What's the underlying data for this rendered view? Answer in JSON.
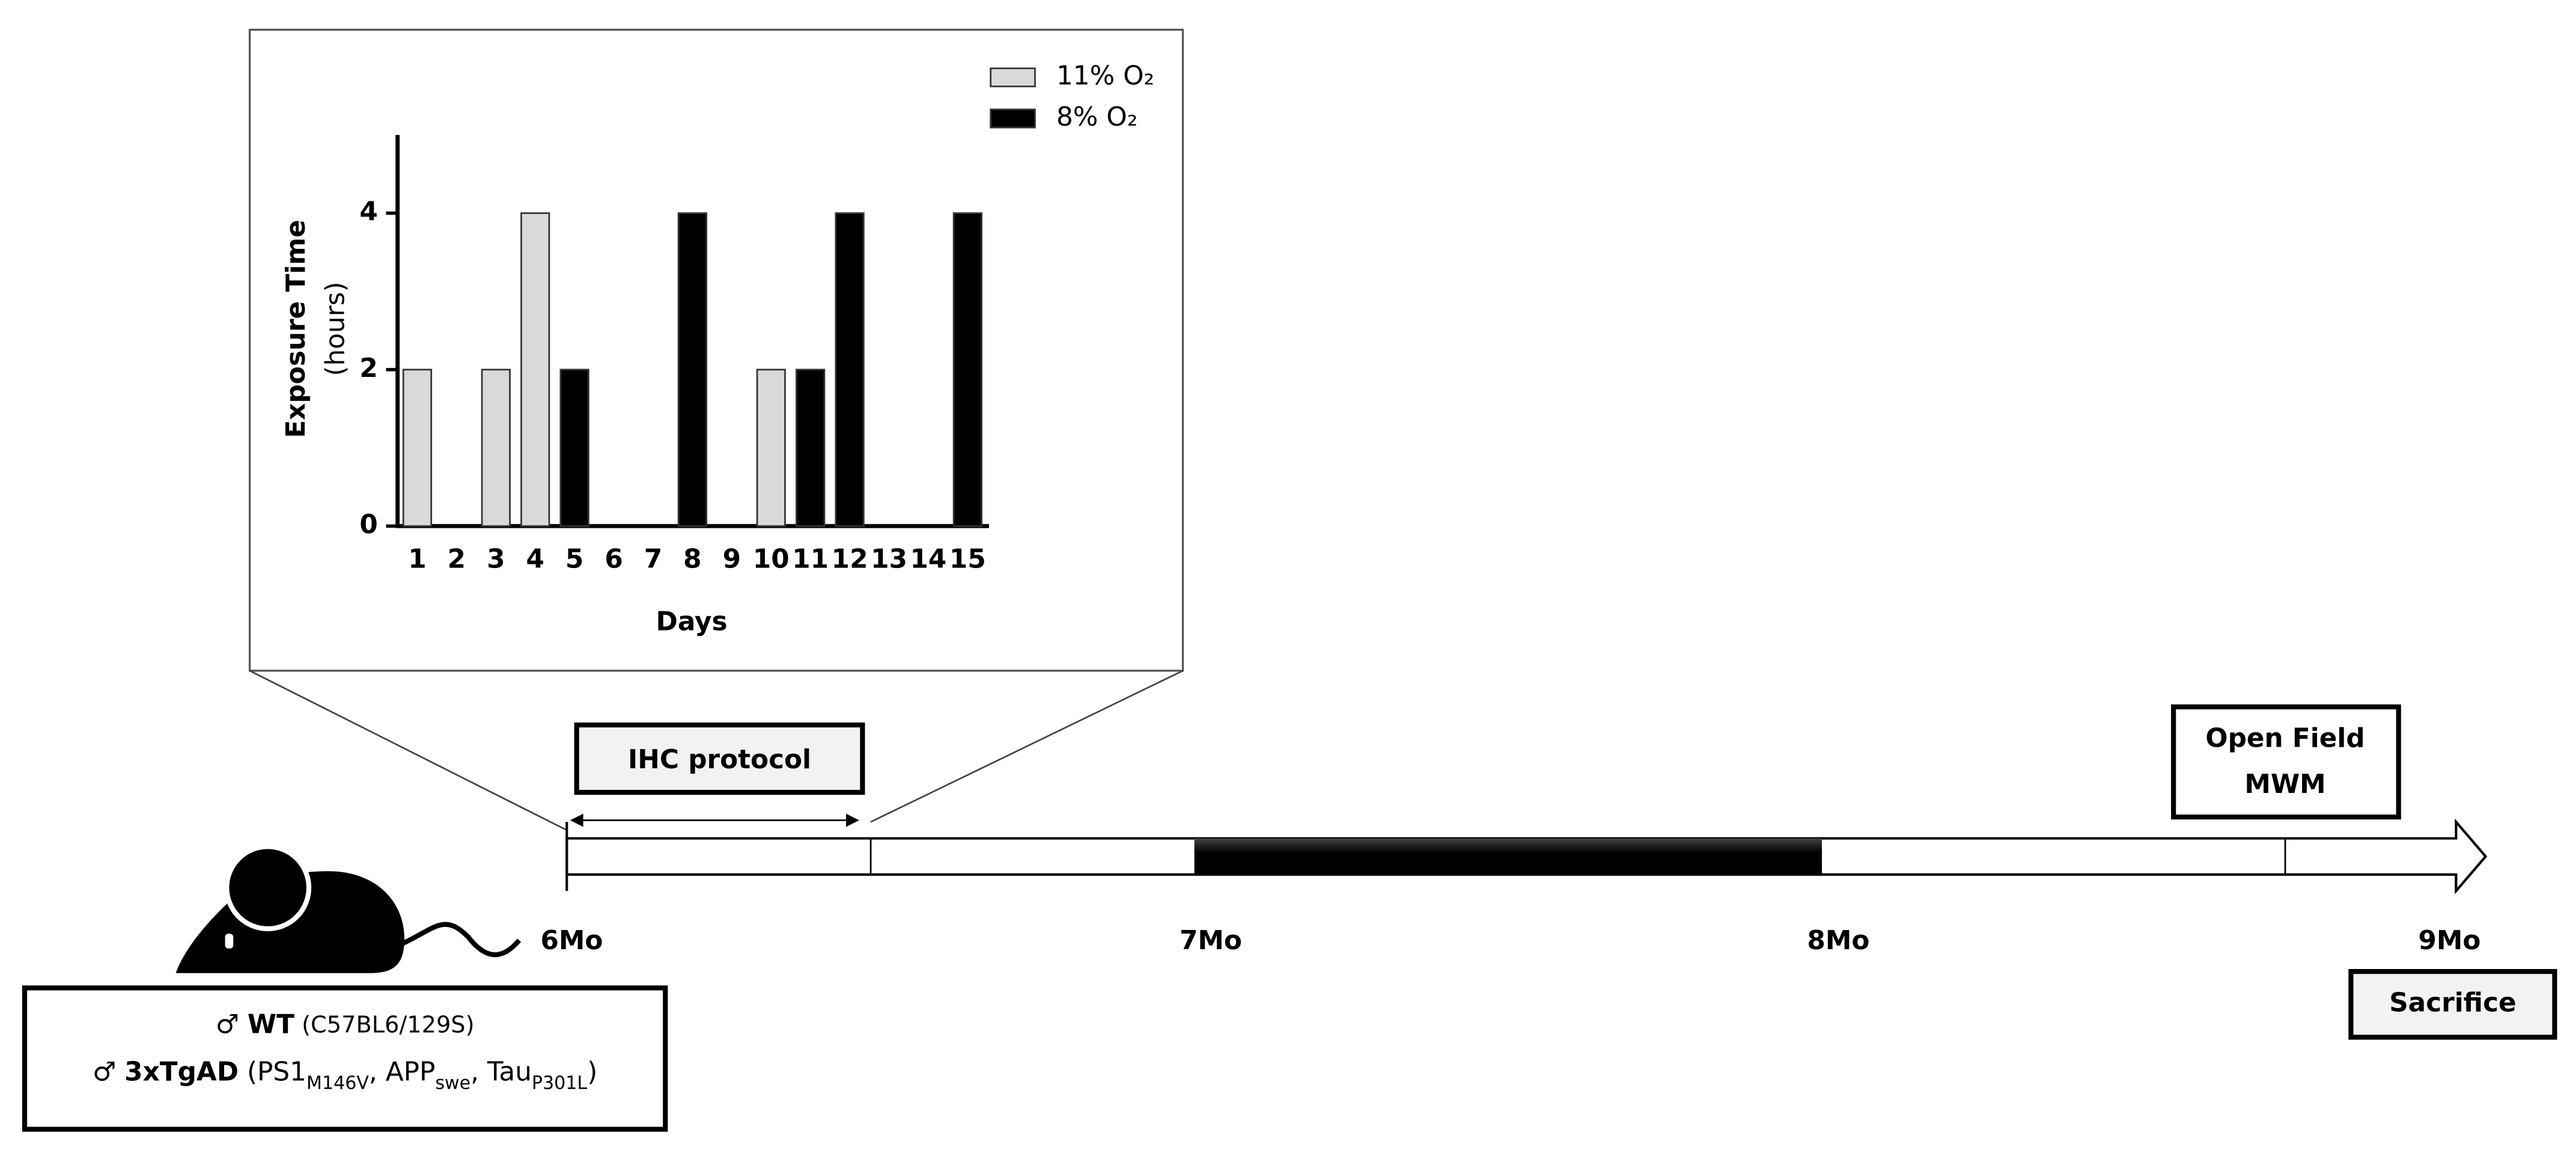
{
  "chart_data": {
    "type": "bar",
    "x_label": "Days",
    "y_label": [
      "Exposure Time",
      "(hours)"
    ],
    "categories": [
      "1",
      "2",
      "3",
      "4",
      "5",
      "6",
      "7",
      "8",
      "9",
      "10",
      "11",
      "12",
      "13",
      "14",
      "15"
    ],
    "series": [
      {
        "name": "11% O₂",
        "color": "#d9d9d9",
        "values": [
          2,
          null,
          2,
          4,
          null,
          null,
          null,
          null,
          null,
          2,
          null,
          null,
          null,
          null,
          null
        ]
      },
      {
        "name": "8% O₂",
        "color": "#000000",
        "values": [
          null,
          null,
          null,
          null,
          2,
          null,
          null,
          4,
          null,
          null,
          2,
          4,
          null,
          null,
          4
        ]
      }
    ],
    "ylim": [
      0,
      5
    ],
    "yticks": [
      0,
      2,
      4
    ]
  },
  "timeline": {
    "months": [
      "6Mo",
      "7Mo",
      "8Mo",
      "9Mo"
    ],
    "boxes": {
      "ihc": "IHC protocol",
      "behavior": [
        "Open Field",
        "MWM"
      ],
      "end": "Sacrifice"
    }
  },
  "mice": {
    "lines": [
      [
        {
          "text": "♂ ",
          "style": "normal"
        },
        {
          "text": "WT",
          "style": "bold"
        },
        {
          "text": " (C57BL6/129S)",
          "style": "small"
        }
      ],
      [
        {
          "text": "♂ ",
          "style": "normal"
        },
        {
          "text": "3xTgAD",
          "style": "bold"
        },
        {
          "text": " (PS1",
          "style": "normal"
        },
        {
          "text": "M146V",
          "style": "sub"
        },
        {
          "text": ", APP",
          "style": "normal"
        },
        {
          "text": "swe",
          "style": "sub"
        },
        {
          "text": ", Tau",
          "style": "normal"
        },
        {
          "text": "P301L",
          "style": "sub"
        },
        {
          "text": ")",
          "style": "normal"
        }
      ]
    ]
  }
}
